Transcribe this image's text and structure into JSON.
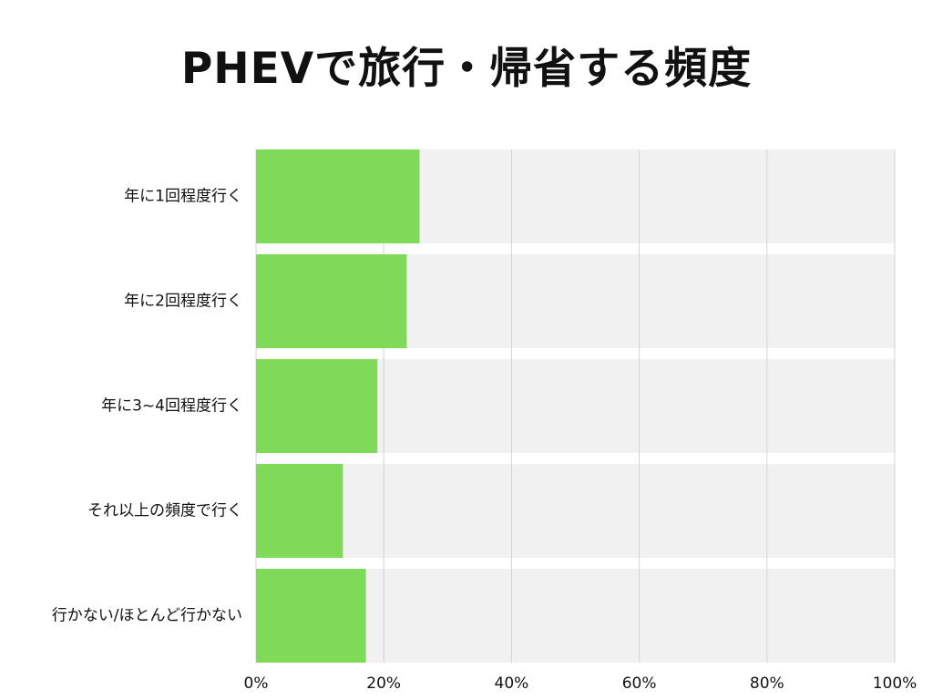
{
  "chart_data": {
    "type": "bar",
    "orientation": "horizontal",
    "title": "PHEVで旅行・帰省する頻度",
    "categories": [
      "年に1回程度行く",
      "年に2回程度行く",
      "年に3~4回程度行く",
      "それ以上の頻度で行く",
      "行かない/ほとんど行かない"
    ],
    "values": [
      25.6,
      23.6,
      19.0,
      13.6,
      17.2
    ],
    "xlim": [
      0,
      100
    ],
    "xticks": [
      0,
      20,
      40,
      60,
      80,
      100
    ],
    "xtick_labels": [
      "0%",
      "20%",
      "40%",
      "60%",
      "80%",
      "100%"
    ],
    "xlabel": "",
    "ylabel": "",
    "grid": true,
    "legend": "none",
    "colors": {
      "bar": "#7fda57",
      "track": "#f1f1f1",
      "grid": "#d4d4d4"
    }
  }
}
